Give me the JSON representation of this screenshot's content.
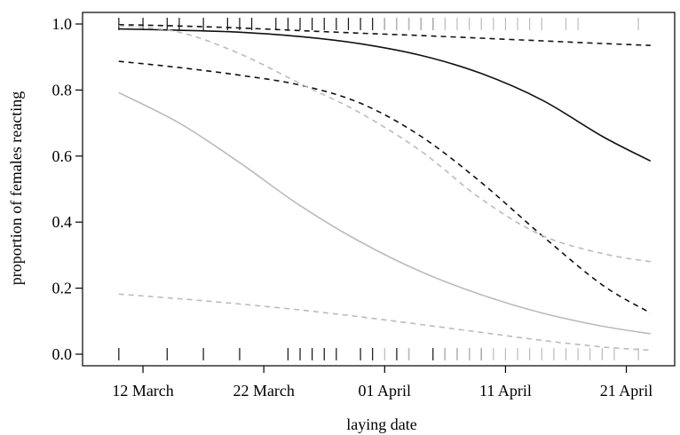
{
  "chart_data": {
    "type": "line",
    "title": "",
    "xlabel": "laying date",
    "ylabel": "proportion of females reacting",
    "x_unit": "date",
    "xlim": [
      "2012-03-07",
      "2012-04-25"
    ],
    "ylim": [
      -0.035,
      1.035
    ],
    "x_ticks": [
      {
        "value": "2012-03-12",
        "label": "12 March"
      },
      {
        "value": "2012-03-22",
        "label": "22 March"
      },
      {
        "value": "2012-04-01",
        "label": "01 April"
      },
      {
        "value": "2012-04-11",
        "label": "11 April"
      },
      {
        "value": "2012-04-21",
        "label": "21 April"
      }
    ],
    "y_ticks": [
      {
        "value": 0.0,
        "label": "0.0"
      },
      {
        "value": 0.2,
        "label": "0.2"
      },
      {
        "value": 0.4,
        "label": "0.4"
      },
      {
        "value": 0.6,
        "label": "0.6"
      },
      {
        "value": 0.8,
        "label": "0.8"
      },
      {
        "value": 1.0,
        "label": "1.0"
      }
    ],
    "grid": false,
    "legend": "none",
    "series": [
      {
        "color": "#111111",
        "style": "solid",
        "x": [
          "2012-03-10",
          "2012-03-15",
          "2012-03-20",
          "2012-03-25",
          "2012-03-30",
          "2012-04-04",
          "2012-04-09",
          "2012-04-14",
          "2012-04-19",
          "2012-04-23"
        ],
        "values": [
          0.985,
          0.981,
          0.975,
          0.962,
          0.94,
          0.905,
          0.85,
          0.77,
          0.66,
          0.585
        ]
      },
      {
        "color": "#111111",
        "style": "dashed",
        "x": [
          "2012-03-10",
          "2012-03-15",
          "2012-03-20",
          "2012-03-25",
          "2012-03-30",
          "2012-04-04",
          "2012-04-09",
          "2012-04-14",
          "2012-04-19",
          "2012-04-23"
        ],
        "values": [
          0.998,
          0.994,
          0.988,
          0.98,
          0.972,
          0.965,
          0.957,
          0.949,
          0.941,
          0.935
        ]
      },
      {
        "color": "#111111",
        "style": "dashed",
        "x": [
          "2012-03-10",
          "2012-03-15",
          "2012-03-20",
          "2012-03-25",
          "2012-03-30",
          "2012-04-04",
          "2012-04-09",
          "2012-04-14",
          "2012-04-19",
          "2012-04-23"
        ],
        "values": [
          0.887,
          0.868,
          0.845,
          0.815,
          0.76,
          0.66,
          0.52,
          0.36,
          0.21,
          0.125
        ]
      },
      {
        "color": "#bbbbbb",
        "style": "solid",
        "x": [
          "2012-03-10",
          "2012-03-15",
          "2012-03-20",
          "2012-03-25",
          "2012-03-30",
          "2012-04-04",
          "2012-04-09",
          "2012-04-14",
          "2012-04-19",
          "2012-04-23"
        ],
        "values": [
          0.792,
          0.7,
          0.58,
          0.45,
          0.34,
          0.25,
          0.18,
          0.125,
          0.085,
          0.062
        ]
      },
      {
        "color": "#bbbbbb",
        "style": "dashed",
        "x": [
          "2012-03-10",
          "2012-03-15",
          "2012-03-20",
          "2012-03-25",
          "2012-03-30",
          "2012-04-04",
          "2012-04-09",
          "2012-04-14",
          "2012-04-19",
          "2012-04-23"
        ],
        "values": [
          0.995,
          0.975,
          0.91,
          0.82,
          0.73,
          0.615,
          0.47,
          0.36,
          0.305,
          0.28
        ]
      },
      {
        "color": "#bbbbbb",
        "style": "dashed",
        "x": [
          "2012-03-10",
          "2012-03-15",
          "2012-03-20",
          "2012-03-25",
          "2012-03-30",
          "2012-04-04",
          "2012-04-09",
          "2012-04-14",
          "2012-04-19",
          "2012-04-23"
        ],
        "values": [
          0.182,
          0.168,
          0.152,
          0.134,
          0.113,
          0.09,
          0.066,
          0.042,
          0.022,
          0.012
        ]
      }
    ],
    "rugs": [
      {
        "y": 1.0,
        "color": "#111111",
        "x": [
          "2012-03-10",
          "2012-03-12",
          "2012-03-14",
          "2012-03-15",
          "2012-03-17",
          "2012-03-19",
          "2012-03-20",
          "2012-03-21",
          "2012-03-23",
          "2012-03-24",
          "2012-03-25",
          "2012-03-26",
          "2012-03-27",
          "2012-03-28",
          "2012-03-29",
          "2012-03-30",
          "2012-03-31",
          "2012-04-01",
          "2012-04-02",
          "2012-04-03",
          "2012-04-04",
          "2012-04-05"
        ]
      },
      {
        "y": 1.0,
        "color": "#bbbbbb",
        "x": [
          "2012-04-01",
          "2012-04-02",
          "2012-04-03",
          "2012-04-04",
          "2012-04-05",
          "2012-04-06",
          "2012-04-07",
          "2012-04-08",
          "2012-04-09",
          "2012-04-10",
          "2012-04-11",
          "2012-04-12",
          "2012-04-13",
          "2012-04-14",
          "2012-04-16",
          "2012-04-17",
          "2012-04-22"
        ]
      },
      {
        "y": 0.0,
        "color": "#111111",
        "x": [
          "2012-03-10",
          "2012-03-14",
          "2012-03-17",
          "2012-03-20",
          "2012-03-24",
          "2012-03-25",
          "2012-03-26",
          "2012-03-27",
          "2012-03-28",
          "2012-03-30",
          "2012-03-31",
          "2012-04-02",
          "2012-04-03",
          "2012-04-05",
          "2012-04-06",
          "2012-04-07",
          "2012-04-08",
          "2012-04-09"
        ]
      },
      {
        "y": 0.0,
        "color": "#bbbbbb",
        "x": [
          "2012-04-01",
          "2012-04-03",
          "2012-04-06",
          "2012-04-07",
          "2012-04-08",
          "2012-04-09",
          "2012-04-10",
          "2012-04-11",
          "2012-04-12",
          "2012-04-13",
          "2012-04-14",
          "2012-04-15",
          "2012-04-16",
          "2012-04-17",
          "2012-04-18",
          "2012-04-19",
          "2012-04-20",
          "2012-04-22"
        ]
      }
    ]
  }
}
